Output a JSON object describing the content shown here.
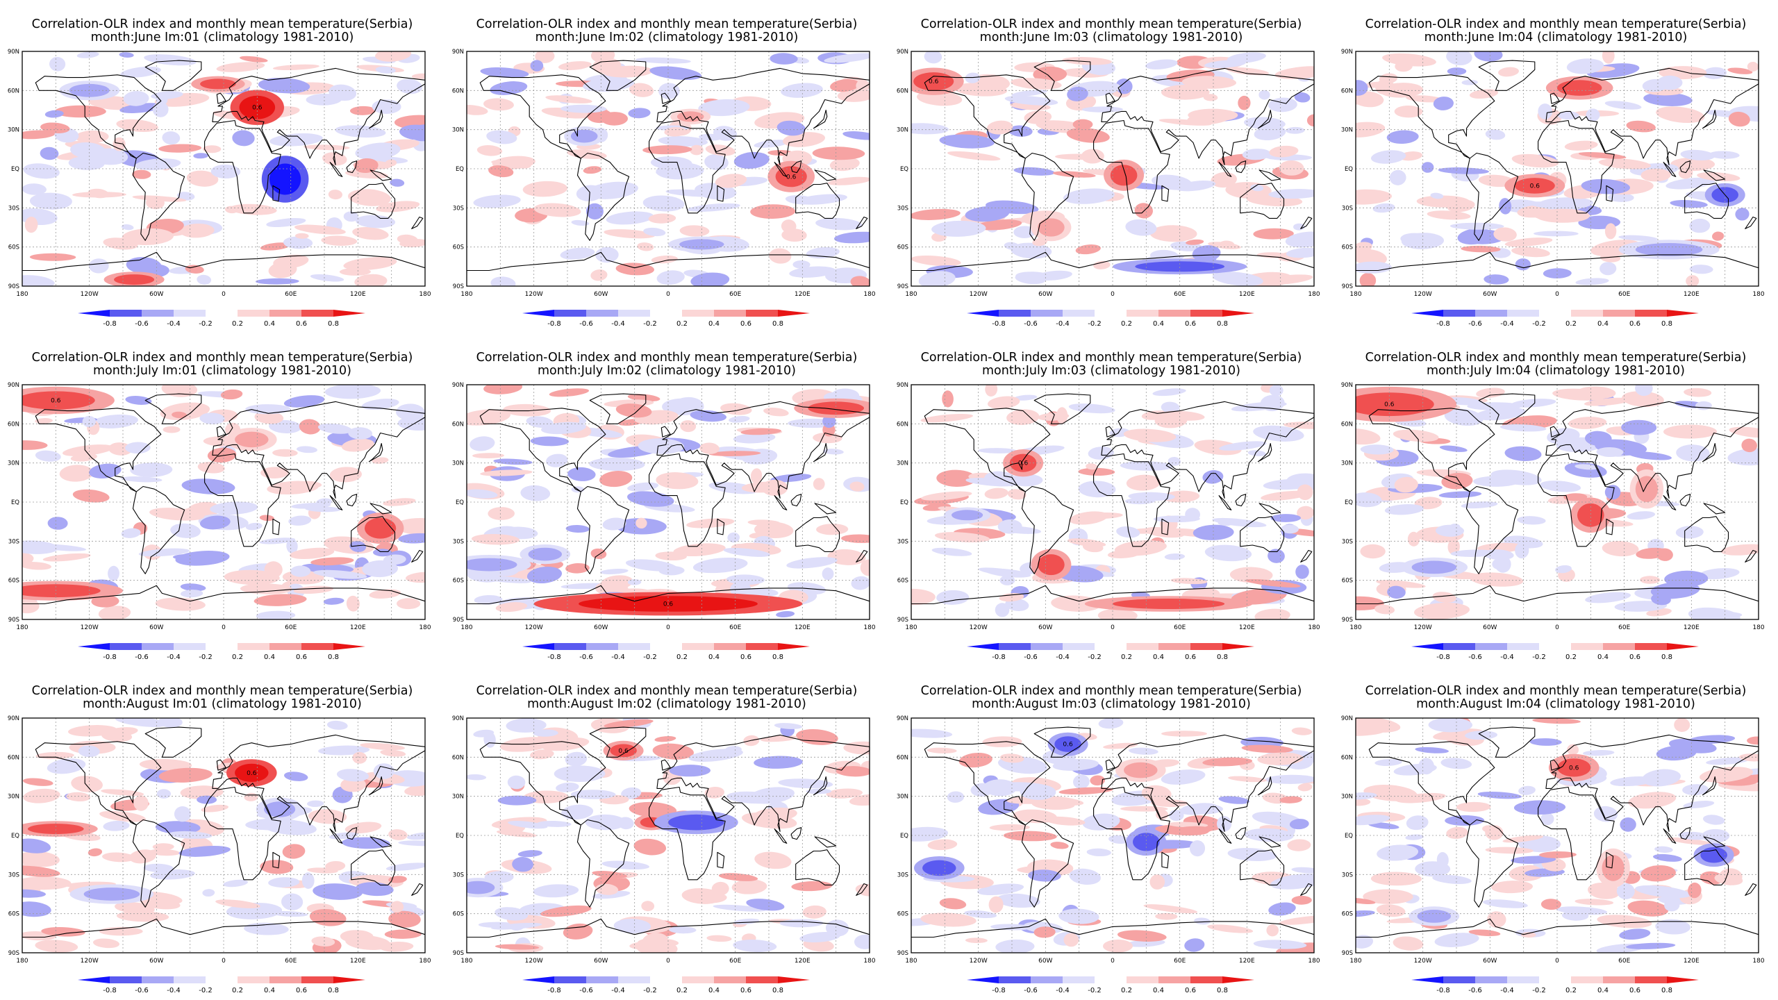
{
  "figure": {
    "title_prefix": "Correlation-OLR index and monthly mean temperature(Serbia)",
    "subtitle_suffix": "(climatology 1981-2010)",
    "lon_labels": [
      "180",
      "120W",
      "60W",
      "0",
      "60E",
      "120E",
      "180"
    ],
    "lat_labels": [
      "90N",
      "60N",
      "30N",
      "EQ",
      "30S",
      "60S",
      "90S"
    ],
    "colorbar_labels": [
      "-0.8",
      "-0.6",
      "-0.4",
      "-0.2",
      "0.2",
      "0.4",
      "0.6",
      "0.8"
    ],
    "colorbar_colors": [
      "#1414ff",
      "#5a5af0",
      "#a8a8f5",
      "#dedefa",
      "#ffffff",
      "#fbd6d6",
      "#f6a3a3",
      "#f05050",
      "#e81414"
    ],
    "contour_label": "0.6"
  },
  "panels": [
    {
      "title": "Correlation-OLR index and monthly mean temperature(Serbia)",
      "subtitle": "month:June Im:01 (climatology 1981-2010)"
    },
    {
      "title": "Correlation-OLR index and monthly mean temperature(Serbia)",
      "subtitle": "month:June Im:02 (climatology 1981-2010)"
    },
    {
      "title": "Correlation-OLR index and monthly mean temperature(Serbia)",
      "subtitle": "month:June Im:03 (climatology 1981-2010)"
    },
    {
      "title": "Correlation-OLR index and monthly mean temperature(Serbia)",
      "subtitle": "month:June Im:04 (climatology 1981-2010)"
    },
    {
      "title": "Correlation-OLR index and monthly mean temperature(Serbia)",
      "subtitle": "month:July Im:01 (climatology 1981-2010)"
    },
    {
      "title": "Correlation-OLR index and monthly mean temperature(Serbia)",
      "subtitle": "month:July Im:02 (climatology 1981-2010)"
    },
    {
      "title": "Correlation-OLR index and monthly mean temperature(Serbia)",
      "subtitle": "month:July Im:03 (climatology 1981-2010)"
    },
    {
      "title": "Correlation-OLR index and monthly mean temperature(Serbia)",
      "subtitle": "month:July Im:04 (climatology 1981-2010)"
    },
    {
      "title": "Correlation-OLR index and monthly mean temperature(Serbia)",
      "subtitle": "month:August Im:01 (climatology 1981-2010)"
    },
    {
      "title": "Correlation-OLR index and monthly mean temperature(Serbia)",
      "subtitle": "month:August Im:02 (climatology 1981-2010)"
    },
    {
      "title": "Correlation-OLR index and monthly mean temperature(Serbia)",
      "subtitle": "month:August Im:03 (climatology 1981-2010)"
    },
    {
      "title": "Correlation-OLR index and monthly mean temperature(Serbia)",
      "subtitle": "month:August Im:04 (climatology 1981-2010)"
    }
  ]
}
